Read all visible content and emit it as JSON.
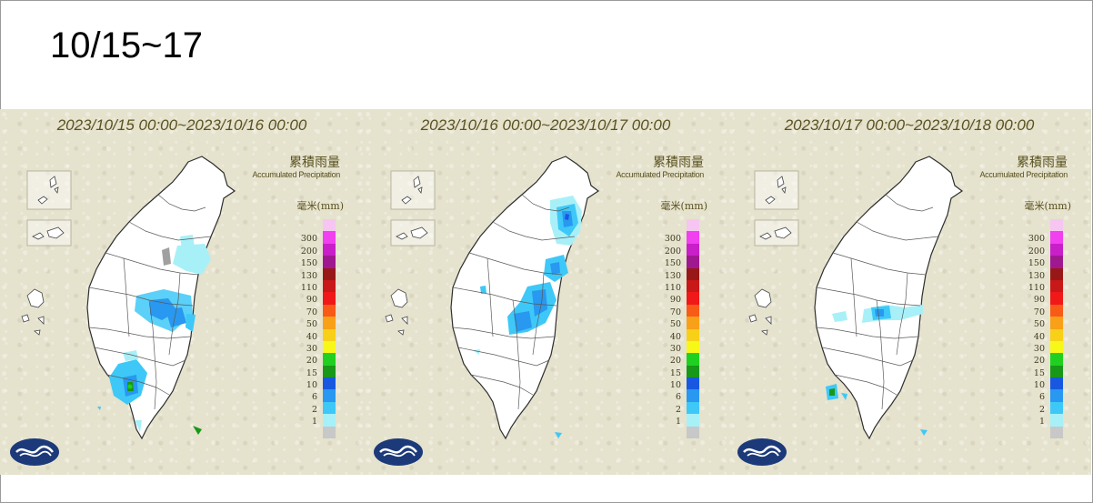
{
  "slide": {
    "title": "10/15~17"
  },
  "panels": [
    {
      "date_range": "2023/10/15 00:00~2023/10/16 00:00"
    },
    {
      "date_range": "2023/10/16 00:00~2023/10/17 00:00"
    },
    {
      "date_range": "2023/10/17 00:00~2023/10/18 00:00"
    }
  ],
  "legend": {
    "title_zh": "累積雨量",
    "title_en": "Accumulated Precipitation",
    "unit": "毫米(mm)",
    "levels": [
      {
        "label": "",
        "color": "#f7c5f2"
      },
      {
        "label": "300",
        "color": "#f040f0"
      },
      {
        "label": "200",
        "color": "#c81fc8"
      },
      {
        "label": "150",
        "color": "#a01890"
      },
      {
        "label": "130",
        "color": "#981818"
      },
      {
        "label": "110",
        "color": "#c81818"
      },
      {
        "label": "90",
        "color": "#f01818"
      },
      {
        "label": "70",
        "color": "#f85a18"
      },
      {
        "label": "50",
        "color": "#f8a018"
      },
      {
        "label": "40",
        "color": "#f8d018"
      },
      {
        "label": "30",
        "color": "#f8f818"
      },
      {
        "label": "20",
        "color": "#20d020"
      },
      {
        "label": "15",
        "color": "#189818"
      },
      {
        "label": "10",
        "color": "#1858e0"
      },
      {
        "label": "6",
        "color": "#2898f0"
      },
      {
        "label": "2",
        "color": "#3ec8f8"
      },
      {
        "label": "1",
        "color": "#a8f0f8"
      },
      {
        "label": "",
        "color": "#c8c8c8"
      }
    ]
  },
  "map": {
    "land_color": "#ffffff",
    "border_color": "#3a3a3a",
    "background_color": "#e5e2cd"
  }
}
